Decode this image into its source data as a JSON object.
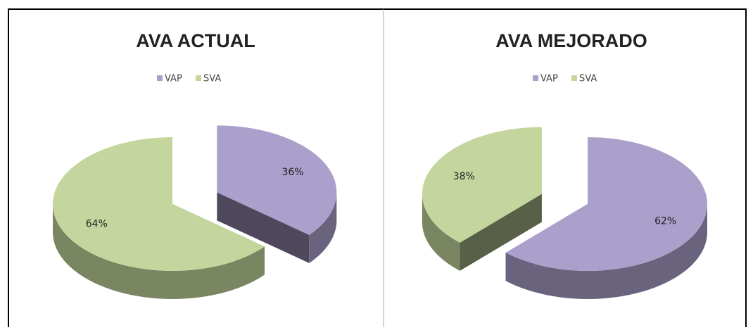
{
  "chart_data": [
    {
      "type": "pie",
      "title": "AVA ACTUAL",
      "categories": [
        "VAP",
        "SVA"
      ],
      "values": [
        36,
        64
      ],
      "value_labels": [
        "36%",
        "64%"
      ],
      "colors": [
        "#ab9fcb",
        "#c4d69d"
      ],
      "explode": [
        true,
        false
      ]
    },
    {
      "type": "pie",
      "title": "AVA MEJORADO",
      "categories": [
        "VAP",
        "SVA"
      ],
      "values": [
        62,
        38
      ],
      "value_labels": [
        "62%",
        "38%"
      ],
      "colors": [
        "#ab9fcb",
        "#c4d69d"
      ],
      "explode": [
        false,
        true
      ]
    }
  ]
}
